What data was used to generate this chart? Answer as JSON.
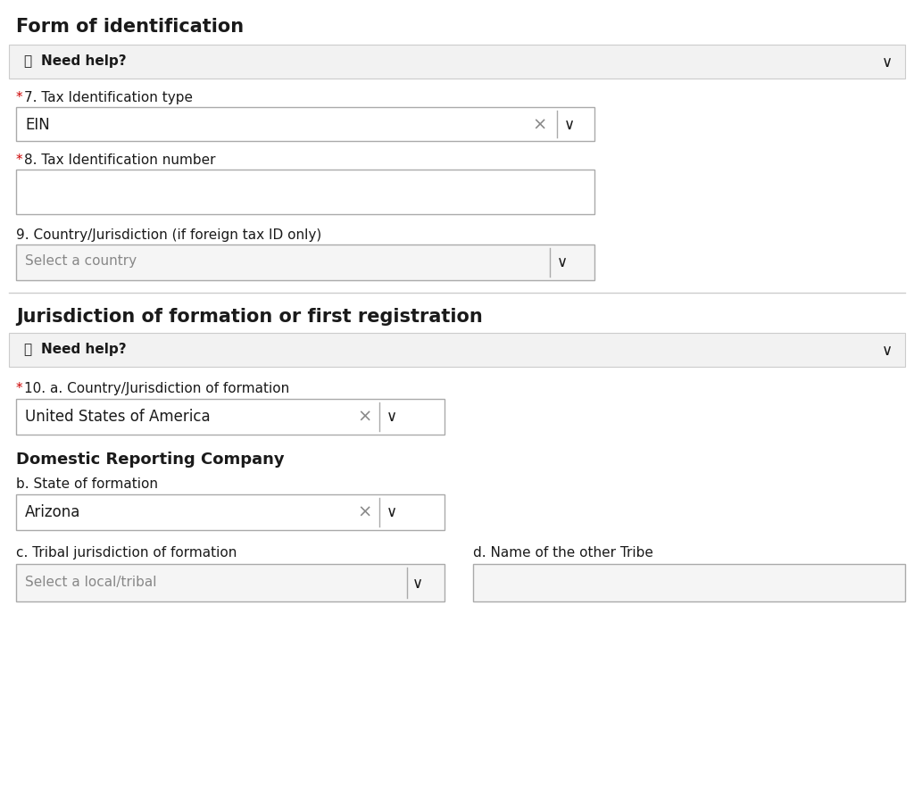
{
  "bg_color": "#ffffff",
  "border_color": "#cccccc",
  "light_bg": "#f2f2f2",
  "text_dark": "#1a1a1a",
  "text_gray": "#888888",
  "red_star": "#cc0000",
  "input_border": "#aaaaaa",
  "input_bg_white": "#ffffff",
  "input_bg_light": "#f5f5f5",
  "section1_title": "Form of identification",
  "section2_title": "Jurisdiction of formation or first registration",
  "subsection_title": "Domestic Reporting Company",
  "need_help": "Need help?",
  "chevron_down": "∨",
  "circle_q": "ⓙ",
  "field7_label_star": "*",
  "field7_label": "7. Tax Identification type",
  "field7_value": "EIN",
  "field8_label_star": "*",
  "field8_label": "8. Tax Identification number",
  "field9_label": "9. Country/Jurisdiction (if foreign tax ID only)",
  "field9_placeholder": "Select a country",
  "field10_label_star": "*",
  "field10_label": "10. a. Country/Jurisdiction of formation",
  "field10_value": "United States of America",
  "fieldb_label": "b. State of formation",
  "fieldb_value": "Arizona",
  "fieldc_label": "c. Tribal jurisdiction of formation",
  "fieldc_placeholder": "Select a local/tribal",
  "fieldd_label": "d. Name of the other Tribe"
}
